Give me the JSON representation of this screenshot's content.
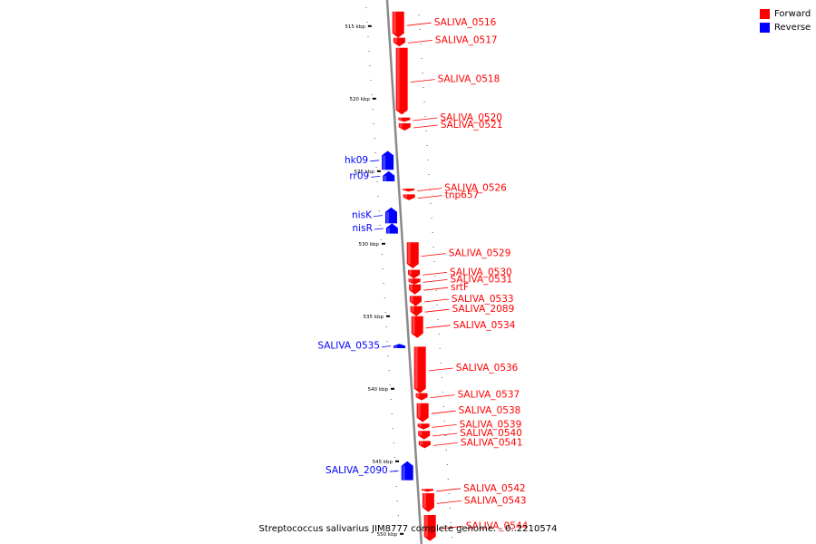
{
  "legend": [
    {
      "label": "Forward",
      "color": "#ff0000"
    },
    {
      "label": "Reverse",
      "color": "#0000ff"
    }
  ],
  "caption": "Streptococcus salivarius JIM8777 complete genome. - 0..2210574",
  "colors": {
    "forward": "#ff0000",
    "reverse": "#0000ff",
    "backbone": "#8a8a8a"
  },
  "kbp_labels": [
    {
      "text": "515 kbp",
      "pos": 515
    },
    {
      "text": "520 kbp",
      "pos": 520
    },
    {
      "text": "525 kbp",
      "pos": 525
    },
    {
      "text": "530 kbp",
      "pos": 530
    },
    {
      "text": "535 kbp",
      "pos": 535
    },
    {
      "text": "540 kbp",
      "pos": 540
    },
    {
      "text": "545 kbp",
      "pos": 545
    },
    {
      "text": "550 kbp",
      "pos": 550
    }
  ],
  "genes": [
    {
      "name": "SALIVA_0516",
      "strand": "forward",
      "start": 514.0,
      "end": 515.8
    },
    {
      "name": "SALIVA_0517",
      "strand": "forward",
      "start": 515.8,
      "end": 516.4
    },
    {
      "name": "SALIVA_0518",
      "strand": "forward",
      "start": 516.5,
      "end": 521.1
    },
    {
      "name": "SALIVA_0520",
      "strand": "forward",
      "start": 521.3,
      "end": 521.6
    },
    {
      "name": "SALIVA_0521",
      "strand": "forward",
      "start": 521.7,
      "end": 522.2
    },
    {
      "name": "hk09",
      "strand": "reverse",
      "start": 523.6,
      "end": 524.9
    },
    {
      "name": "rr09",
      "strand": "reverse",
      "start": 525.0,
      "end": 525.7
    },
    {
      "name": "SALIVA_0526",
      "strand": "forward",
      "start": 526.2,
      "end": 526.4
    },
    {
      "name": "tnp657",
      "strand": "forward",
      "start": 526.6,
      "end": 527.0
    },
    {
      "name": "nisK",
      "strand": "reverse",
      "start": 527.5,
      "end": 528.6
    },
    {
      "name": "nisR",
      "strand": "reverse",
      "start": 528.6,
      "end": 529.3
    },
    {
      "name": "SALIVA_0529",
      "strand": "forward",
      "start": 529.9,
      "end": 531.7
    },
    {
      "name": "SALIVA_0530",
      "strand": "forward",
      "start": 531.8,
      "end": 532.4
    },
    {
      "name": "SALIVA_0531",
      "strand": "forward",
      "start": 532.4,
      "end": 532.8
    },
    {
      "name": "srtF",
      "strand": "forward",
      "start": 532.8,
      "end": 533.5
    },
    {
      "name": "SALIVA_0533",
      "strand": "forward",
      "start": 533.6,
      "end": 534.3
    },
    {
      "name": "SALIVA_2089",
      "strand": "forward",
      "start": 534.3,
      "end": 535.0
    },
    {
      "name": "SALIVA_0534",
      "strand": "forward",
      "start": 535.0,
      "end": 536.5
    },
    {
      "name": "SALIVA_0535",
      "strand": "reverse",
      "start": 536.9,
      "end": 537.2
    },
    {
      "name": "SALIVA_0536",
      "strand": "forward",
      "start": 537.1,
      "end": 540.3
    },
    {
      "name": "SALIVA_0537",
      "strand": "forward",
      "start": 540.3,
      "end": 540.8
    },
    {
      "name": "SALIVA_0538",
      "strand": "forward",
      "start": 541.0,
      "end": 542.3
    },
    {
      "name": "SALIVA_0539",
      "strand": "forward",
      "start": 542.4,
      "end": 542.8
    },
    {
      "name": "SALIVA_0540",
      "strand": "forward",
      "start": 542.9,
      "end": 543.5
    },
    {
      "name": "SALIVA_0541",
      "strand": "forward",
      "start": 543.6,
      "end": 544.1
    },
    {
      "name": "SALIVA_2090",
      "strand": "reverse",
      "start": 545.0,
      "end": 546.3
    },
    {
      "name": "SALIVA_0542",
      "strand": "forward",
      "start": 546.9,
      "end": 547.1
    },
    {
      "name": "SALIVA_0543",
      "strand": "forward",
      "start": 547.2,
      "end": 548.5
    },
    {
      "name": "SALIVA_0544",
      "strand": "forward",
      "start": 548.7,
      "end": 550.5
    }
  ]
}
